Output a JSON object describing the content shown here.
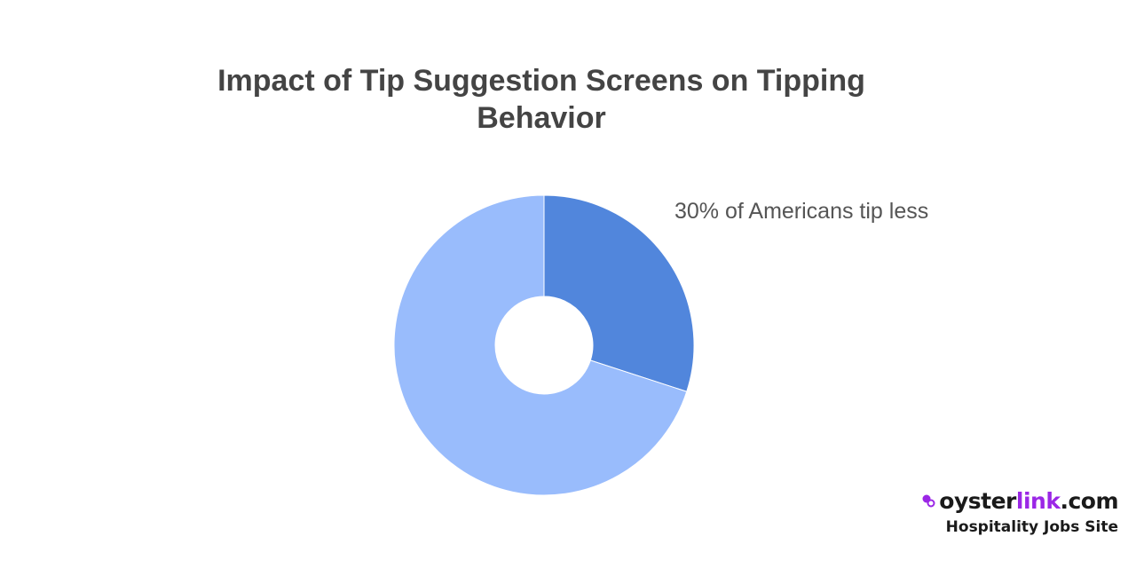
{
  "chart_data": {
    "type": "pie",
    "variant": "donut",
    "title_lines": [
      "Impact of Tip Suggestion Screens on Tipping",
      "Behavior"
    ],
    "slices": [
      {
        "label": "30% of Americans tip less",
        "value": 30,
        "color": "#5186dc"
      },
      {
        "label": "",
        "value": 70,
        "color": "#99bcfc"
      }
    ],
    "legend": "none"
  },
  "branding": {
    "name_part1": "oyster",
    "name_part2": "link",
    "name_part3": ".com",
    "tagline": "Hospitality Jobs Site",
    "accent_color": "#9b27e6",
    "icon": "oyster-link-icon"
  }
}
